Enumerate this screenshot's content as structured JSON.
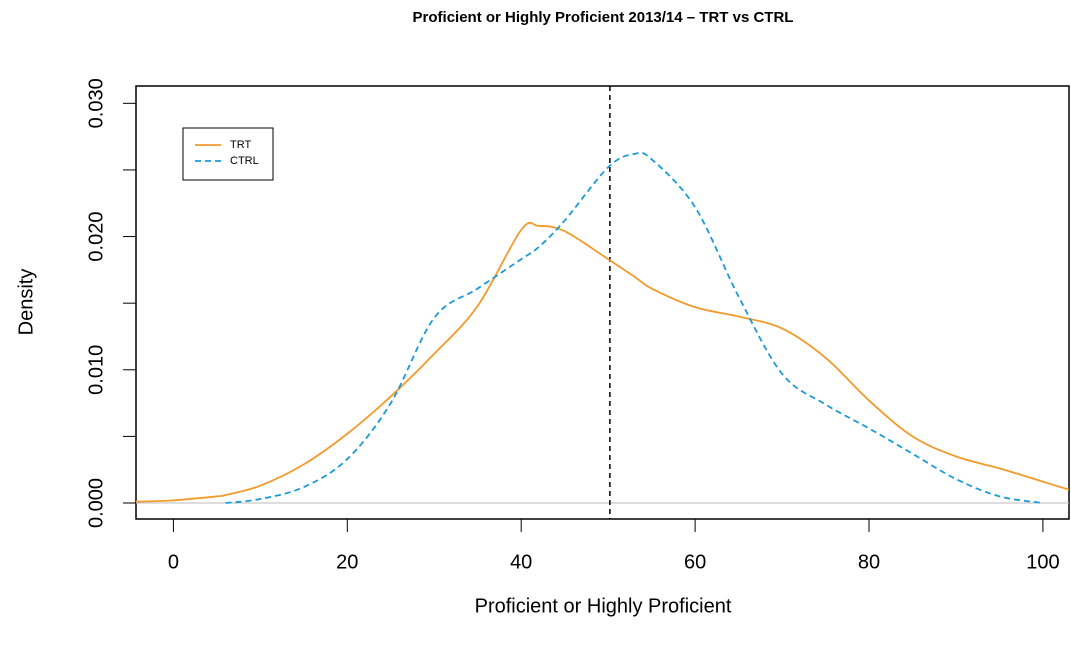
{
  "chart_data": {
    "type": "line",
    "title": "Proficient or Highly Proficient 2013/14 – TRT vs CTRL",
    "x_label": "Proficient or Highly Proficient",
    "y_label": "Density",
    "x": [
      -4.3,
      0,
      5,
      6,
      10,
      15,
      20,
      25,
      30,
      35,
      40,
      42,
      45,
      50,
      53,
      55,
      60,
      65,
      70,
      75,
      80,
      85,
      90,
      95,
      100,
      103
    ],
    "series": [
      {
        "name": "TRT",
        "color": "#f39a2b",
        "dash": "solid",
        "values": [
          0.0001,
          0.0002,
          0.0005,
          0.0006,
          0.0013,
          0.0029,
          0.0052,
          0.008,
          0.0112,
          0.0148,
          0.0205,
          0.0208,
          0.0204,
          0.0183,
          0.017,
          0.0161,
          0.0147,
          0.014,
          0.0131,
          0.0109,
          0.0077,
          0.005,
          0.0035,
          0.0026,
          0.0016,
          0.001
        ]
      },
      {
        "name": "CTRL",
        "color": "#1a9ad6",
        "dash": "dashed",
        "values": [
          null,
          null,
          null,
          0.0,
          0.0003,
          0.0012,
          0.0033,
          0.0075,
          0.0139,
          0.0161,
          0.0183,
          0.0192,
          0.0212,
          0.0252,
          0.0262,
          0.0258,
          0.0222,
          0.0155,
          0.0097,
          0.0074,
          0.0056,
          0.0037,
          0.0018,
          0.0005,
          0.0,
          null
        ]
      }
    ],
    "xlim": [
      -4.3,
      103
    ],
    "ylim": [
      -0.0012,
      0.0313
    ],
    "xticks": [
      0,
      20,
      40,
      60,
      80,
      100
    ],
    "yticks": [
      {
        "value": 0,
        "label": "0.000"
      },
      {
        "value": 0.005,
        "label": null
      },
      {
        "value": 0.01,
        "label": "0.010"
      },
      {
        "value": 0.015,
        "label": null
      },
      {
        "value": 0.02,
        "label": "0.020"
      },
      {
        "value": 0.025,
        "label": null
      },
      {
        "value": 0.03,
        "label": "0.030"
      }
    ],
    "hline": 0,
    "vline": 50.2,
    "legend": "top-left"
  }
}
